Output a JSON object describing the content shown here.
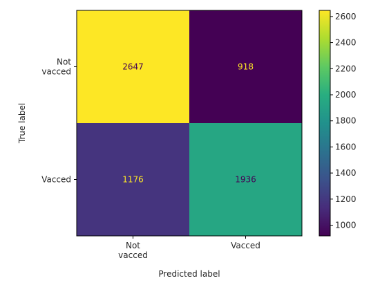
{
  "chart_data": {
    "type": "heatmap",
    "xlabel": "Predicted label",
    "ylabel": "True label",
    "x_categories": [
      "Not\nvacced",
      "Vacced"
    ],
    "y_categories": [
      "Not\nvacced",
      "Vacced"
    ],
    "values": [
      [
        2647,
        918
      ],
      [
        1176,
        1936
      ]
    ],
    "colorbar": {
      "min": 918,
      "max": 2647,
      "ticks": [
        1000,
        1200,
        1400,
        1600,
        1800,
        2000,
        2200,
        2400,
        2600
      ]
    },
    "colormap": "viridis",
    "grid": false
  }
}
